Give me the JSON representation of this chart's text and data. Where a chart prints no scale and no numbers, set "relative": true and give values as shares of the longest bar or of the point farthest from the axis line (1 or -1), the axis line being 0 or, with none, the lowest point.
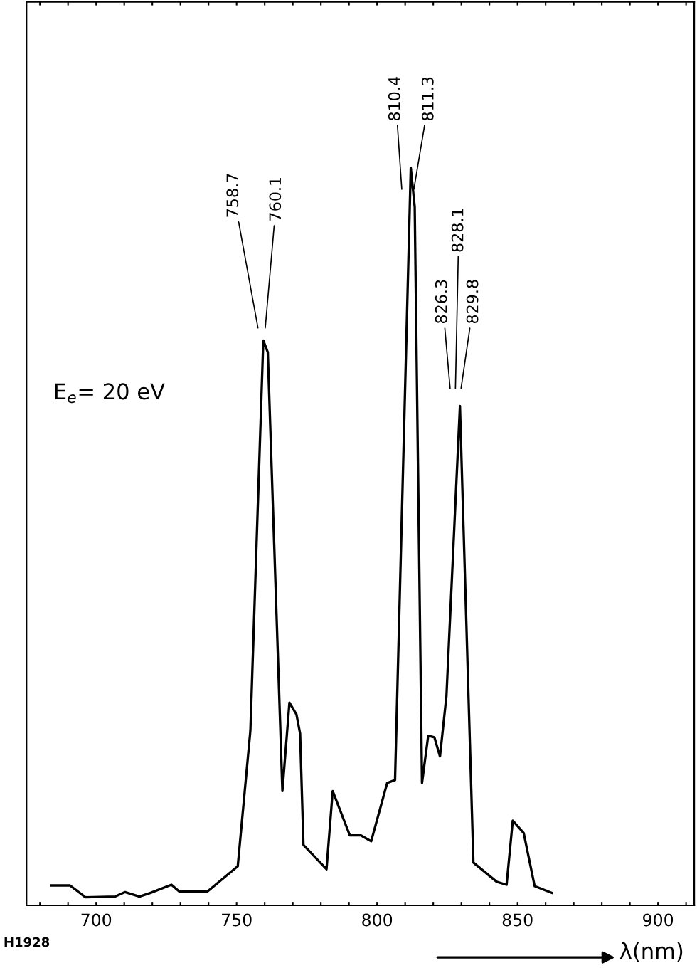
{
  "chart_data": {
    "type": "line",
    "relative": true,
    "xlabel": "λ(nm)",
    "xlim": [
      675.2,
      912.9
    ],
    "xticks": [
      {
        "value": 680,
        "label": null
      },
      {
        "value": 690,
        "label": null
      },
      700,
      {
        "value": 710,
        "label": null
      },
      {
        "value": 720,
        "label": null
      },
      {
        "value": 730,
        "label": null
      },
      {
        "value": 740,
        "label": null
      },
      750,
      {
        "value": 760,
        "label": null
      },
      {
        "value": 770,
        "label": null
      },
      {
        "value": 780,
        "label": null
      },
      {
        "value": 790,
        "label": null
      },
      800,
      {
        "value": 810,
        "label": null
      },
      {
        "value": 820,
        "label": null
      },
      {
        "value": 830,
        "label": null
      },
      {
        "value": 840,
        "label": null
      },
      850,
      {
        "value": 860,
        "label": null
      },
      {
        "value": 870,
        "label": null
      },
      {
        "value": 880,
        "label": null
      },
      {
        "value": 890,
        "label": null
      },
      900,
      {
        "value": 910,
        "label": null
      }
    ],
    "grid": false,
    "marker": "none",
    "line_style": "solid",
    "series": [
      {
        "color": "#000000",
        "x": [
          684.0,
          690.7,
          696.2,
          706.8,
          710.3,
          715.4,
          719.4,
          726.8,
          729.5,
          739.7,
          750.4,
          754.9,
          759.5,
          761.1,
          766.3,
          768.8,
          771.3,
          772.6,
          773.8,
          782.0,
          784.2,
          790.3,
          794.2,
          797.9,
          803.6,
          806.4,
          812.0,
          813.4,
          816.0,
          818.2,
          820.4,
          822.4,
          824.7,
          829.5,
          834.3,
          842.6,
          846.1,
          848.3,
          852.2,
          856.1,
          862.2
        ],
        "values": [
          0.027,
          0.027,
          0.011,
          0.012,
          0.018,
          0.012,
          0.017,
          0.028,
          0.019,
          0.019,
          0.053,
          0.237,
          0.766,
          0.75,
          0.155,
          0.275,
          0.259,
          0.233,
          0.082,
          0.049,
          0.155,
          0.095,
          0.095,
          0.087,
          0.166,
          0.17,
          1.0,
          0.947,
          0.166,
          0.23,
          0.228,
          0.202,
          0.284,
          0.677,
          0.058,
          0.032,
          0.028,
          0.115,
          0.098,
          0.026,
          0.017
        ]
      }
    ],
    "annotations": [
      "758.7",
      "760.1",
      "810.4",
      "811.3",
      "826.3",
      "828.1",
      "829.8",
      "E$_{e}$= 20 eV",
      "H1928"
    ]
  }
}
